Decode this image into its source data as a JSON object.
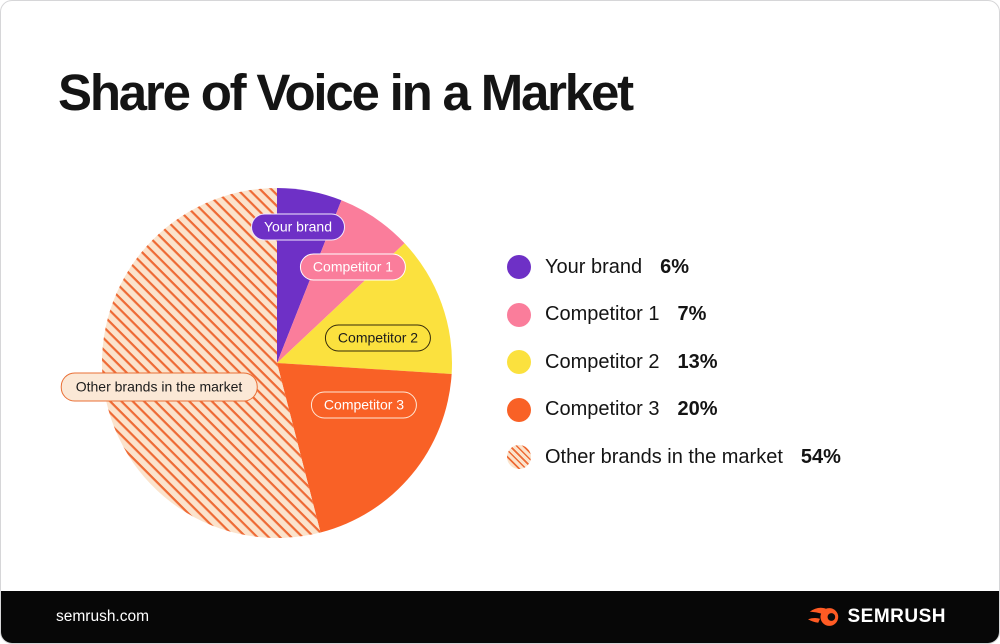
{
  "header": {
    "title": "Share of Voice in a Market"
  },
  "chart_data": {
    "type": "pie",
    "title": "Share of Voice in a Market",
    "direction": "clockwise",
    "start_angle_deg": 0,
    "unit": "%",
    "slices": [
      {
        "label": "Your brand",
        "value": 6,
        "color": "#6E30C6",
        "pattern": "solid"
      },
      {
        "label": "Competitor 1",
        "value": 7,
        "color": "#FA7D9B",
        "pattern": "solid"
      },
      {
        "label": "Competitor 2",
        "value": 13,
        "color": "#FBE13E",
        "pattern": "solid"
      },
      {
        "label": "Competitor 3",
        "value": 20,
        "color": "#F96126",
        "pattern": "solid"
      },
      {
        "label": "Other brands in the market",
        "value": 54,
        "color": "#FBE3CC",
        "pattern": "diagonal-stripes",
        "stripe_color": "#EE6A35"
      }
    ],
    "legend_position": "right",
    "labels_on_chart": true
  },
  "legend": {
    "items": [
      {
        "label": "Your brand",
        "value_text": "6%"
      },
      {
        "label": "Competitor 1",
        "value_text": "7%"
      },
      {
        "label": "Competitor 2",
        "value_text": "13%"
      },
      {
        "label": "Competitor 3",
        "value_text": "20%"
      },
      {
        "label": "Other brands in the market",
        "value_text": "54%"
      }
    ]
  },
  "pie_labels": [
    {
      "text": "Your brand",
      "bg": "#6E30C6",
      "border": "#F1EAFF",
      "text_color": "#FFFFFF"
    },
    {
      "text": "Competitor 1",
      "bg": "#FA7D9B",
      "border": "#FFFFFF",
      "text_color": "#FFFFFF"
    },
    {
      "text": "Competitor 2",
      "bg": "#FBE13E",
      "border": "#33290B",
      "text_color": "#1C1C1C"
    },
    {
      "text": "Competitor 3",
      "bg": "#F96126",
      "border": "#FFE8D6",
      "text_color": "#FFFFFF"
    },
    {
      "text": "Other brands in the market",
      "bg": "#FBE8D6",
      "border": "#E96F35",
      "text_color": "#1C1C1C"
    }
  ],
  "footer": {
    "site": "semrush.com",
    "brand": "SEMRUSH"
  },
  "colors": {
    "card_bg": "#FFFFFF",
    "card_border": "#D6D6D8",
    "footer_bg": "#070707",
    "title_text": "#141414",
    "legend_text": "#141414",
    "brand_icon_orange": "#FF5B24"
  }
}
